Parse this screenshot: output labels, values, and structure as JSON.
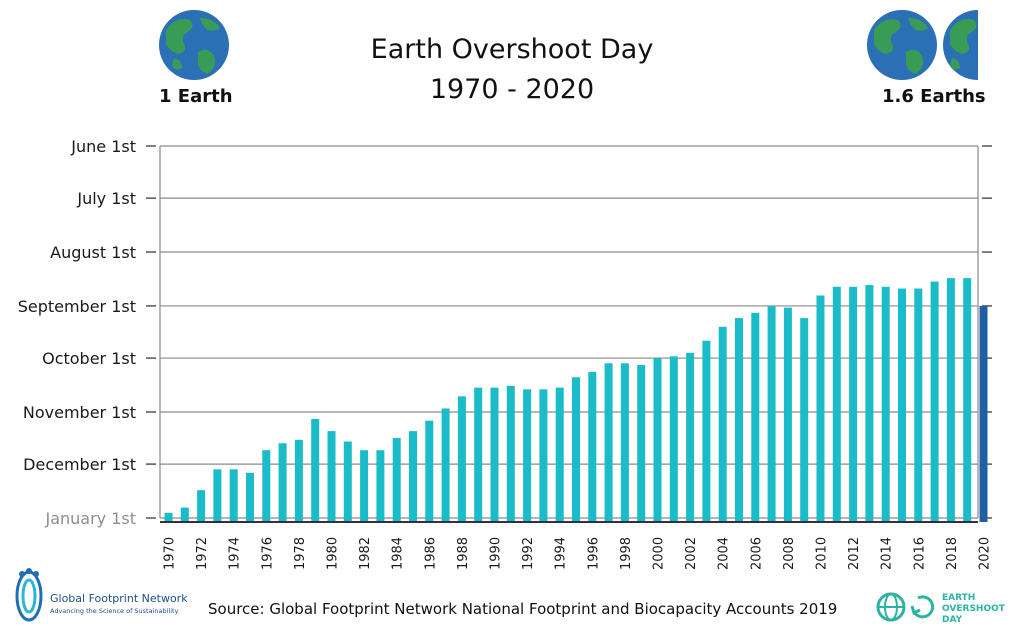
{
  "header": {
    "title_line1": "Earth Overshoot Day",
    "title_line2": "1970 - 2020",
    "left_label": "1 Earth",
    "right_label": "1.6 Earths"
  },
  "footer": {
    "source": "Source: Global Footprint Network National Footprint and Biocapacity Accounts 2019",
    "gfn_name": "Global Footprint Network",
    "gfn_tagline": "Advancing the Science of Sustainability",
    "eod_logo_lines": [
      "EARTH",
      "OVERSHOOT",
      "DAY"
    ]
  },
  "icons": {
    "earth": "earth-globe-icon",
    "gfn_logo": "footprint-icon",
    "eod_logo": "globe-loop-icon"
  },
  "colors": {
    "bar": "#1bbcc9",
    "highlight_bar": "#1f5fa3",
    "grid": "#8a8a8a",
    "text": "#1a1a1a"
  },
  "chart_data": {
    "type": "bar",
    "title": "Earth Overshoot Day 1970 - 2020",
    "y_axis_reversed": true,
    "y_unit": "day of year",
    "ylim": [
      1,
      152
    ],
    "yticks": [
      {
        "label": "June 1st",
        "value": 152
      },
      {
        "label": "July 1st",
        "value": 182
      },
      {
        "label": "August 1st",
        "value": 213
      },
      {
        "label": "September 1st",
        "value": 244
      },
      {
        "label": "October 1st",
        "value": 274
      },
      {
        "label": "November 1st",
        "value": 305
      },
      {
        "label": "December 1st",
        "value": 335
      },
      {
        "label": "January 1st",
        "value": 366
      }
    ],
    "x_tick_labels": [
      "1970",
      "1972",
      "1974",
      "1976",
      "1978",
      "1980",
      "1982",
      "1984",
      "1986",
      "1988",
      "1990",
      "1992",
      "1994",
      "1996",
      "1998",
      "2000",
      "2002",
      "2004",
      "2006",
      "2008",
      "2010",
      "2012",
      "2014",
      "2016",
      "2018",
      "2020"
    ],
    "categories": [
      1970,
      1971,
      1972,
      1973,
      1974,
      1975,
      1976,
      1977,
      1978,
      1979,
      1980,
      1981,
      1982,
      1983,
      1984,
      1985,
      1986,
      1987,
      1988,
      1989,
      1990,
      1991,
      1992,
      1993,
      1994,
      1995,
      1996,
      1997,
      1998,
      1999,
      2000,
      2001,
      2002,
      2003,
      2004,
      2005,
      2006,
      2007,
      2008,
      2009,
      2010,
      2011,
      2012,
      2013,
      2014,
      2015,
      2016,
      2017,
      2018,
      2019,
      2020
    ],
    "values": [
      363,
      360,
      350,
      338,
      338,
      340,
      327,
      323,
      321,
      309,
      316,
      322,
      327,
      327,
      320,
      316,
      310,
      303,
      296,
      291,
      291,
      290,
      292,
      292,
      291,
      285,
      282,
      277,
      277,
      278,
      274,
      273,
      271,
      264,
      256,
      251,
      248,
      244,
      245,
      251,
      238,
      233,
      233,
      232,
      233,
      234,
      234,
      230,
      228,
      228,
      244
    ],
    "highlight_last": true
  }
}
